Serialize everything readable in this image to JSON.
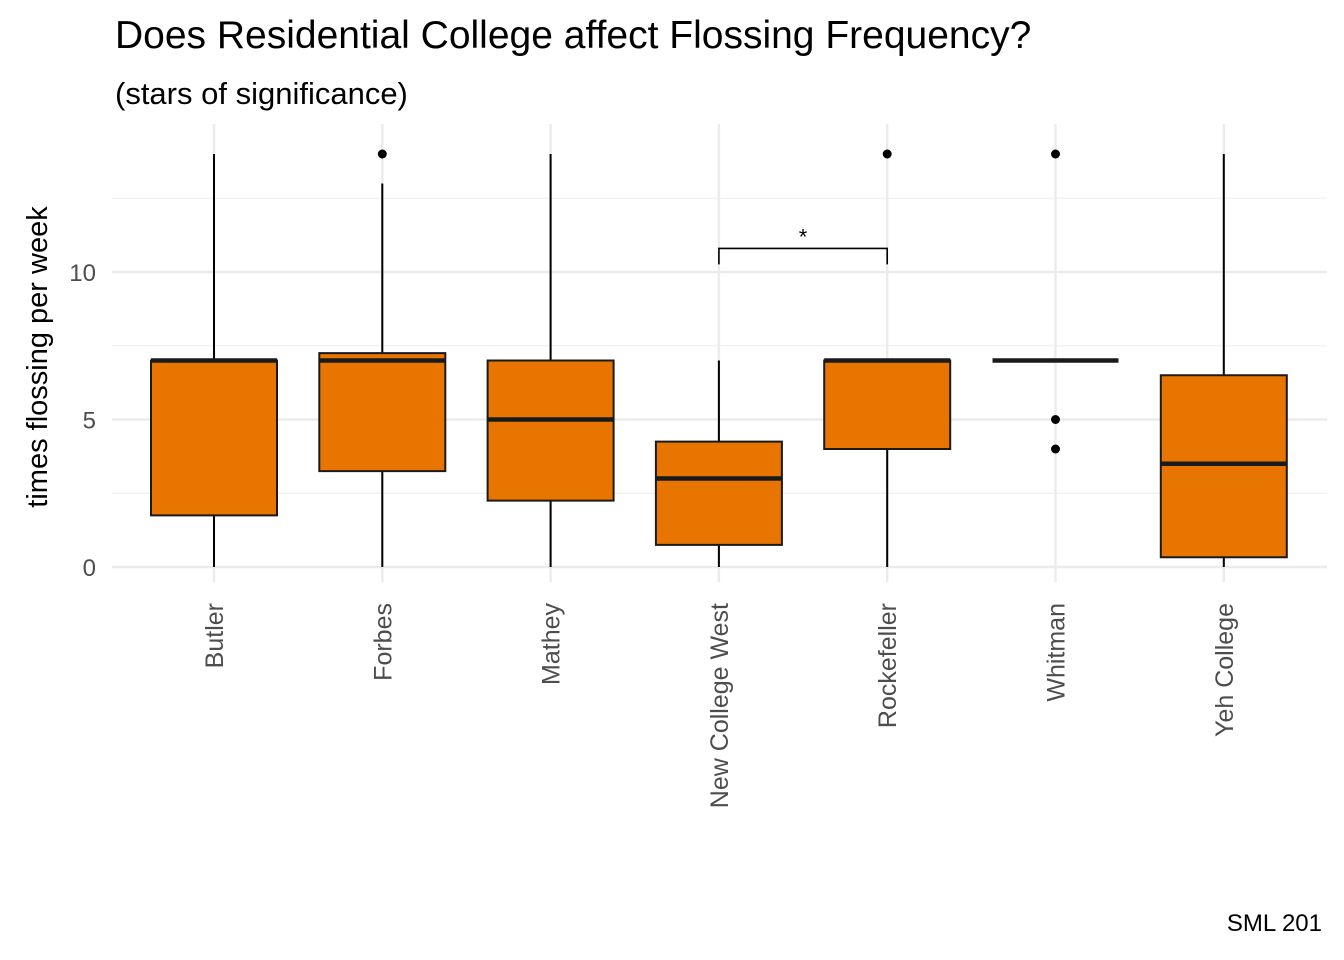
{
  "chart_data": {
    "type": "boxplot",
    "title": "Does Residential College affect Flossing Frequency?",
    "subtitle": "(stars of significance)",
    "ylabel": "times flossing per week",
    "xlabel": "",
    "caption": "SML 201",
    "ylim": [
      0,
      14.5
    ],
    "yticks": [
      0,
      5,
      10
    ],
    "grid": true,
    "fill_color": "#E87500",
    "categories": [
      "Butler",
      "Forbes",
      "Mathey",
      "New College West",
      "Rockefeller",
      "Whitman",
      "Yeh College"
    ],
    "boxes": [
      {
        "name": "Butler",
        "min": 0,
        "q1": 1.75,
        "median": 7,
        "q3": 7,
        "max": 14,
        "outliers": []
      },
      {
        "name": "Forbes",
        "min": 0,
        "q1": 3.25,
        "median": 7,
        "q3": 7.25,
        "max": 13,
        "outliers": [
          14
        ]
      },
      {
        "name": "Mathey",
        "min": 0,
        "q1": 2.25,
        "median": 5,
        "q3": 7,
        "max": 14,
        "outliers": []
      },
      {
        "name": "New College West",
        "min": 0,
        "q1": 0.75,
        "median": 3,
        "q3": 4.25,
        "max": 7,
        "outliers": []
      },
      {
        "name": "Rockefeller",
        "min": 0,
        "q1": 4,
        "median": 7,
        "q3": 7,
        "max": 7,
        "outliers": [
          14
        ]
      },
      {
        "name": "Whitman",
        "min": 7,
        "q1": 7,
        "median": 7,
        "q3": 7,
        "max": 7,
        "outliers": [
          14,
          5,
          4
        ]
      },
      {
        "name": "Yeh College",
        "min": 0,
        "q1": 0.33,
        "median": 3.5,
        "q3": 6.5,
        "max": 14,
        "outliers": []
      }
    ],
    "annotations": [
      {
        "from": "New College West",
        "to": "Rockefeller",
        "y": 10.8,
        "label": "*"
      }
    ]
  }
}
